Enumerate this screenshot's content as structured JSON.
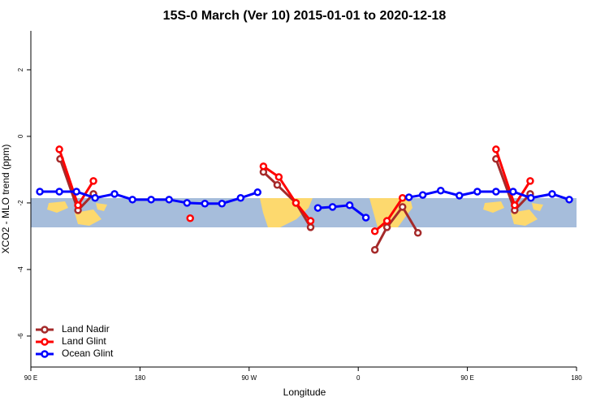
{
  "chart_data": {
    "type": "line",
    "title": "15S-0 March (Ver 10)   2015-01-01 to 2020-12-18",
    "xlabel": "Longitude",
    "ylabel": "XCO2 - MLO trend (ppm)",
    "xlim": [
      90,
      540
    ],
    "ylim": [
      -6.93,
      3.17
    ],
    "xticks": [
      {
        "value": 90,
        "label": "90 E"
      },
      {
        "value": 180,
        "label": "180"
      },
      {
        "value": 270,
        "label": "90 W"
      },
      {
        "value": 360,
        "label": "0"
      },
      {
        "value": 450,
        "label": "90 E"
      },
      {
        "value": 540,
        "label": "180"
      }
    ],
    "yticks": [
      2,
      0,
      -2,
      -4,
      -6
    ],
    "legend": "bottom-left",
    "series": [
      {
        "name": "Land Nadir",
        "color": "#a52a2a",
        "x": [
          114.1,
          128.9,
          141.6,
          null,
          281.8,
          293.2,
          308.6,
          320.7,
          null,
          373.7,
          383.7,
          396.5,
          409.2,
          null,
          473.6,
          489,
          501.8
        ],
        "values": [
          -0.68,
          -2.22,
          -1.73,
          null,
          -1.07,
          -1.46,
          -2.0,
          -2.73,
          null,
          -3.41,
          -2.73,
          -2.12,
          -2.9,
          null,
          -0.68,
          -2.22,
          -1.73
        ]
      },
      {
        "name": "Land Glint",
        "color": "#ff0000",
        "x": [
          113.5,
          128.9,
          141.6,
          null,
          221.4,
          null,
          281.8,
          294.5,
          308.6,
          320.7,
          null,
          373.7,
          383.7,
          396.5,
          null,
          473.6,
          489,
          501.8
        ],
        "values": [
          -0.39,
          -2.07,
          -1.34,
          null,
          -2.46,
          null,
          -0.9,
          -1.22,
          -2.0,
          -2.54,
          null,
          -2.85,
          -2.54,
          -1.85,
          null,
          -0.39,
          -2.07,
          -1.34
        ]
      },
      {
        "name": "Ocean Glint",
        "color": "#0000ff",
        "x": [
          97.4,
          113.5,
          127.6,
          143,
          159,
          173.8,
          189.2,
          204,
          218.8,
          233.5,
          247.6,
          263,
          277,
          null,
          326.7,
          338.8,
          352.9,
          366.3,
          null,
          401.8,
          413.2,
          428,
          443.4,
          458.2,
          473.6,
          487.7,
          502.4,
          519.9,
          534
        ],
        "values": [
          -1.66,
          -1.66,
          -1.66,
          -1.85,
          -1.73,
          -1.9,
          -1.9,
          -1.9,
          -2.0,
          -2.02,
          -2.02,
          -1.85,
          -1.68,
          null,
          -2.15,
          -2.12,
          -2.07,
          -2.44,
          null,
          -1.83,
          -1.76,
          -1.63,
          -1.78,
          -1.66,
          -1.66,
          -1.66,
          -1.85,
          -1.73,
          -1.9
        ]
      }
    ]
  }
}
